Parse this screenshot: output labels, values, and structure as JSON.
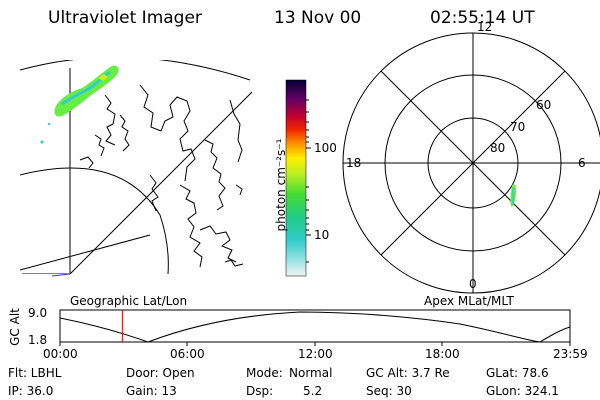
{
  "header": {
    "instrument": "Ultraviolet Imager",
    "date": "13 Nov 00",
    "time": "02:55:14 UT"
  },
  "colorbar": {
    "unit_label": "photon cm⁻²s⁻¹",
    "ticks": [
      "100",
      "10"
    ]
  },
  "maps": {
    "left_caption": "Geographic Lat/Lon",
    "right_caption": "Apex MLat/MLT",
    "polar_mlt_labels": {
      "top": "12",
      "left": "18",
      "right": "6",
      "bottom": "0"
    },
    "polar_mlat_labels": [
      "60",
      "70",
      "80"
    ]
  },
  "altitude_plot": {
    "ylabel": "GC Alt",
    "y_ticks": [
      "9.0",
      "1.8"
    ],
    "x_ticks": [
      "00:00",
      "06:00",
      "12:00",
      "18:00",
      "23:59"
    ],
    "current_time_fraction": 0.1222
  },
  "info": {
    "filter": "Flt: LBHL",
    "ip": "IP: 36.0",
    "door": "Door: Open",
    "gain": "Gain: 13",
    "mode_label": "Mode:",
    "mode_value": "Normal",
    "dsp_label": "Dsp:",
    "dsp_value": "5.2",
    "gc_alt": "GC Alt: 3.7 Re",
    "seq": "Seq: 30",
    "glat": "GLat: 78.6",
    "glon": "GLon: 324.1"
  },
  "colors": {
    "background": "#ffffff",
    "line": "#000000",
    "time_marker": "#cc0000",
    "aurora_green": "#66ee44",
    "aurora_cyan": "#33cccc"
  }
}
